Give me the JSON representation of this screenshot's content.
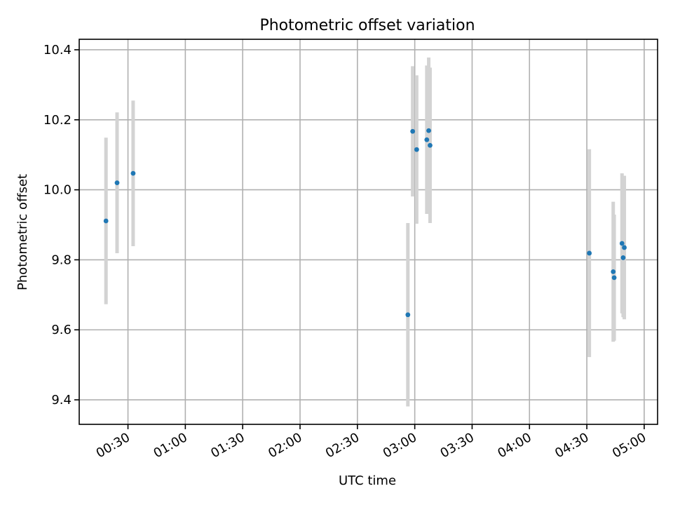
{
  "chart_data": {
    "type": "scatter",
    "title": "Photometric offset variation",
    "xlabel": "UTC time",
    "ylabel": "Photometric offset",
    "x_axis": {
      "unit": "minutes",
      "range": [
        4.5,
        307
      ],
      "ticks": [
        {
          "value": 30,
          "label": "00:30"
        },
        {
          "value": 60,
          "label": "01:00"
        },
        {
          "value": 90,
          "label": "01:30"
        },
        {
          "value": 120,
          "label": "02:00"
        },
        {
          "value": 150,
          "label": "02:30"
        },
        {
          "value": 180,
          "label": "03:00"
        },
        {
          "value": 210,
          "label": "03:30"
        },
        {
          "value": 240,
          "label": "04:00"
        },
        {
          "value": 270,
          "label": "04:30"
        },
        {
          "value": 300,
          "label": "05:00"
        }
      ]
    },
    "y_axis": {
      "range": [
        9.33,
        10.43
      ],
      "ticks": [
        {
          "value": 9.4,
          "label": "9.4"
        },
        {
          "value": 9.6,
          "label": "9.6"
        },
        {
          "value": 9.8,
          "label": "9.8"
        },
        {
          "value": 10.0,
          "label": "10.0"
        },
        {
          "value": 10.2,
          "label": "10.2"
        },
        {
          "value": 10.4,
          "label": "10.4"
        }
      ]
    },
    "grid": true,
    "colors": {
      "point": "#1f77b4",
      "errorbar": "#d3d3d3"
    },
    "points": [
      {
        "x": 18.5,
        "y": 9.911,
        "err": 0.238
      },
      {
        "x": 24.3,
        "y": 10.02,
        "err": 0.201
      },
      {
        "x": 32.7,
        "y": 10.047,
        "err": 0.208
      },
      {
        "x": 176.4,
        "y": 9.643,
        "err": 0.262
      },
      {
        "x": 178.9,
        "y": 10.167,
        "err": 0.186
      },
      {
        "x": 186.3,
        "y": 10.143,
        "err": 0.212
      },
      {
        "x": 187.3,
        "y": 10.169,
        "err": 0.209
      },
      {
        "x": 188.0,
        "y": 10.127,
        "err": 0.222
      },
      {
        "x": 181.0,
        "y": 10.115,
        "err": 0.212
      },
      {
        "x": 271.3,
        "y": 9.819,
        "err": 0.297
      },
      {
        "x": 283.8,
        "y": 9.766,
        "err": 0.2
      },
      {
        "x": 284.3,
        "y": 9.749,
        "err": 0.18
      },
      {
        "x": 288.4,
        "y": 9.847,
        "err": 0.2
      },
      {
        "x": 289.0,
        "y": 9.806,
        "err": 0.17
      },
      {
        "x": 289.6,
        "y": 9.835,
        "err": 0.205
      }
    ]
  }
}
